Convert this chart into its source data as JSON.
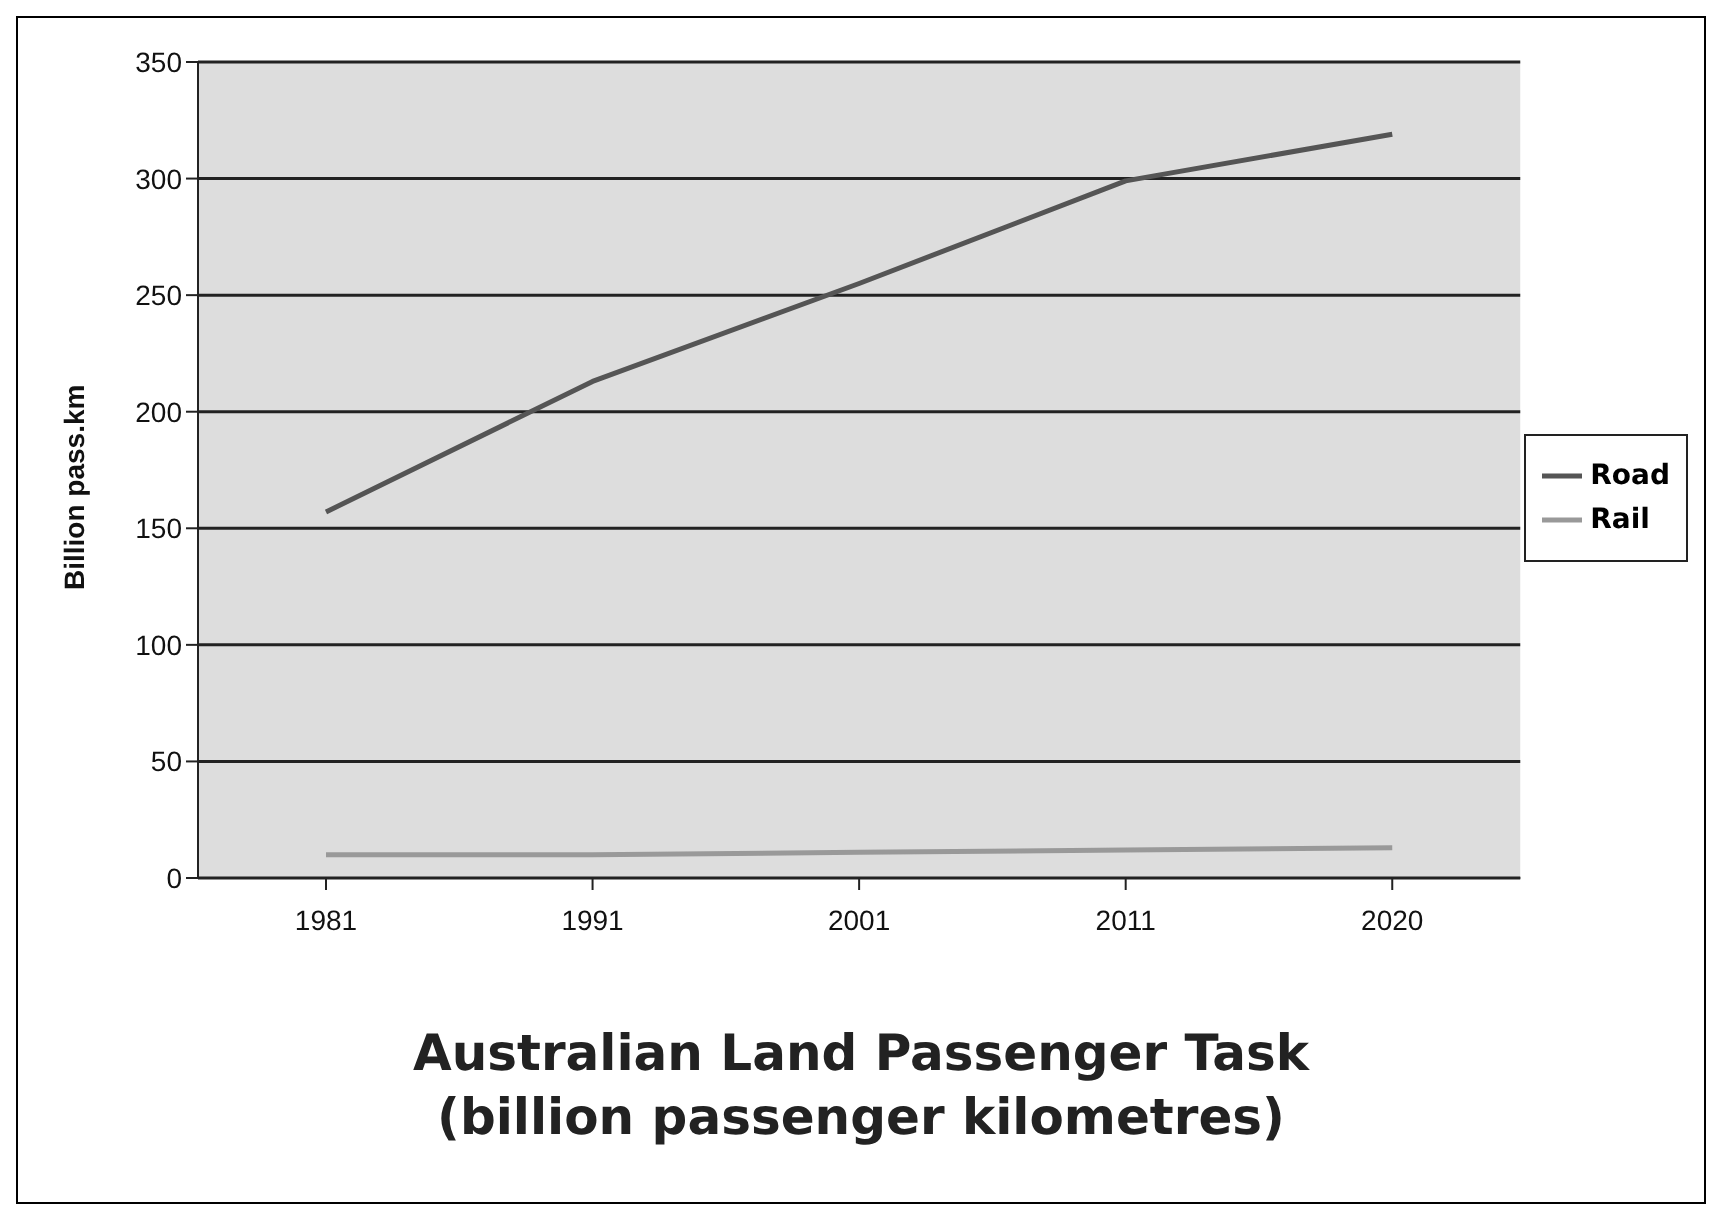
{
  "chart_data": {
    "type": "line",
    "title": "Australian Land Passenger Task\n(billion passenger kilometres)",
    "ylabel": "Billion pass.km",
    "categories": [
      "1981",
      "1991",
      "2001",
      "2011",
      "2020"
    ],
    "series": [
      {
        "name": "Road",
        "color": "#555555",
        "values": [
          157,
          213,
          255,
          299,
          319
        ]
      },
      {
        "name": "Rail",
        "color": "#999999",
        "values": [
          10,
          10,
          11,
          12,
          13
        ]
      }
    ],
    "ylim": [
      0,
      350
    ],
    "yticks": [
      0,
      50,
      100,
      150,
      200,
      250,
      300,
      350
    ],
    "grid": "y",
    "legend": "right",
    "marker": "none",
    "line_style": "solid"
  }
}
